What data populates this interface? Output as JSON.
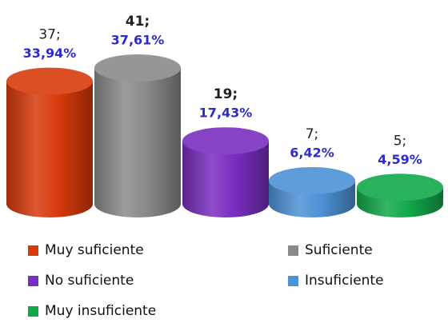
{
  "chart_data": {
    "type": "bar",
    "categories": [
      "Muy suficiente",
      "Suficiente",
      "No suficiente",
      "Insuficiente",
      "Muy insuficiente"
    ],
    "values": [
      37,
      41,
      19,
      7,
      5
    ],
    "value_labels": [
      "37;",
      "41;",
      "19;",
      "7;",
      "5;"
    ],
    "percentages": [
      33.94,
      37.61,
      17.43,
      6.42,
      4.59
    ],
    "percentage_labels": [
      "33,94%",
      "37,61%",
      "17,43%",
      "6,42%",
      "4,59%"
    ],
    "colors": [
      "#d83a0c",
      "#8a8a8a",
      "#7a2ec0",
      "#4d92d6",
      "#12a84a"
    ]
  }
}
